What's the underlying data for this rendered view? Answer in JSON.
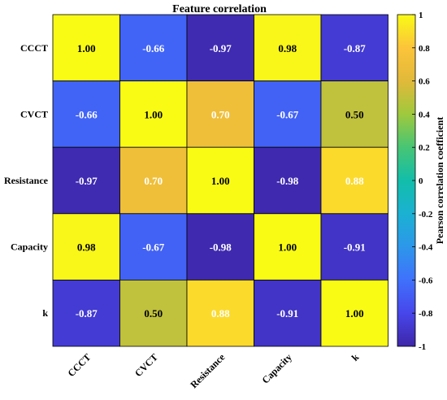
{
  "chart_data": {
    "type": "heatmap",
    "title": "Feature correlation",
    "x_labels": [
      "CCCT",
      "CVCT",
      "Resistance",
      "Capacity",
      "k"
    ],
    "y_labels": [
      "CCCT",
      "CVCT",
      "Resistance",
      "Capacity",
      "k"
    ],
    "values": [
      [
        1.0,
        -0.66,
        -0.97,
        0.98,
        -0.87
      ],
      [
        -0.66,
        1.0,
        0.7,
        -0.67,
        0.5
      ],
      [
        -0.97,
        0.7,
        1.0,
        -0.98,
        0.88
      ],
      [
        0.98,
        -0.67,
        -0.98,
        1.0,
        -0.91
      ],
      [
        -0.87,
        0.5,
        0.88,
        -0.91,
        1.0
      ]
    ],
    "value_labels": [
      [
        "1.00",
        "-0.66",
        "-0.97",
        "0.98",
        "-0.87"
      ],
      [
        "-0.66",
        "1.00",
        "0.70",
        "-0.67",
        "0.50"
      ],
      [
        "-0.97",
        "0.70",
        "1.00",
        "-0.98",
        "0.88"
      ],
      [
        "0.98",
        "-0.67",
        "-0.98",
        "1.00",
        "-0.91"
      ],
      [
        "-0.87",
        "0.50",
        "0.88",
        "-0.91",
        "1.00"
      ]
    ],
    "colorbar": {
      "label": "Pearson correlation coefficient",
      "range": [
        -1,
        1
      ],
      "ticks": [
        "1",
        "0.8",
        "0.6",
        "0.4",
        "0.2",
        "0",
        "-0.2",
        "-0.4",
        "-0.6",
        "-0.8",
        "-1"
      ],
      "tick_values": [
        1,
        0.8,
        0.6,
        0.4,
        0.2,
        0,
        -0.2,
        -0.4,
        -0.6,
        -0.8,
        -1
      ],
      "colormap": "parula"
    }
  }
}
